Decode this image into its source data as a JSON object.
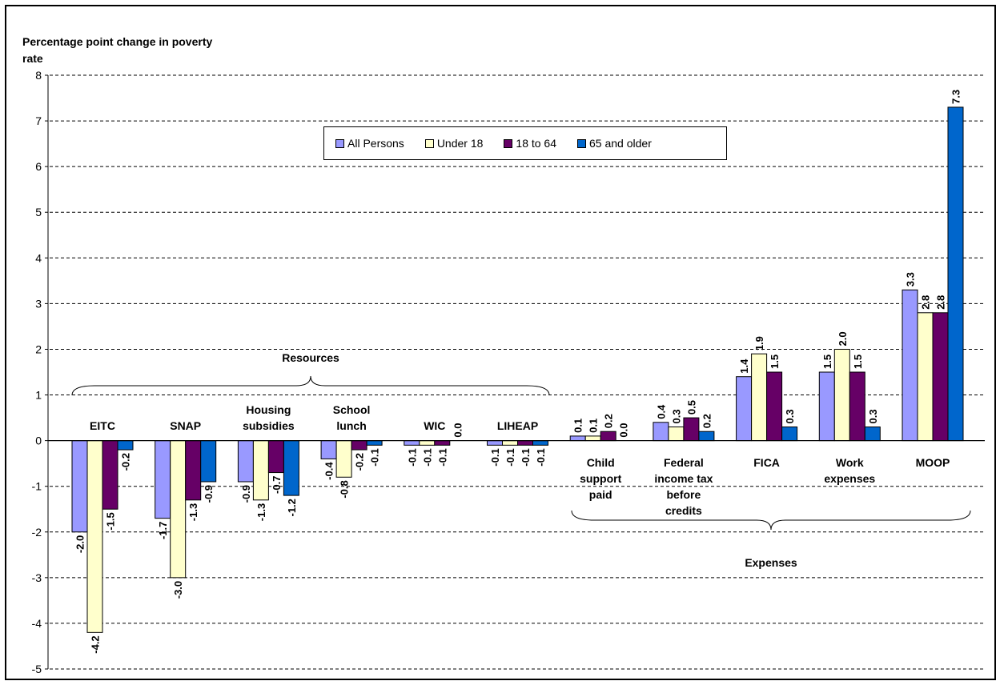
{
  "chart_data": {
    "type": "bar",
    "ylabel": "Percentage point change in poverty rate",
    "ylim": [
      -5,
      8
    ],
    "yticks": [
      "8",
      "7",
      "6",
      "5",
      "4",
      "3",
      "2",
      "1",
      "0",
      "-1",
      "-2",
      "-3",
      "-4",
      "-5"
    ],
    "grid": true,
    "legend_placement": "top-center",
    "categories": [
      "EITC",
      "SNAP",
      "Housing subsidies",
      "School lunch",
      "WIC",
      "LIHEAP",
      "Child support paid",
      "Federal income tax before credits",
      "FICA",
      "Work expenses",
      "MOOP"
    ],
    "category_labels": [
      [
        "EITC"
      ],
      [
        "SNAP"
      ],
      [
        "Housing",
        "subsidies"
      ],
      [
        "School",
        "lunch"
      ],
      [
        "WIC"
      ],
      [
        "LIHEAP"
      ],
      [
        "Child",
        "support",
        "paid"
      ],
      [
        "Federal",
        "income tax",
        "before",
        "credits"
      ],
      [
        "FICA"
      ],
      [
        "Work",
        "expenses"
      ],
      [
        "MOOP"
      ]
    ],
    "series": [
      {
        "name": "All Persons",
        "color": "#9999ff",
        "values": [
          -2.0,
          -1.7,
          -0.9,
          -0.4,
          -0.1,
          -0.1,
          0.1,
          0.4,
          1.4,
          1.5,
          3.3
        ]
      },
      {
        "name": "Under 18",
        "color": "#ffffcc",
        "values": [
          -4.2,
          -3.0,
          -1.3,
          -0.8,
          -0.1,
          -0.1,
          0.1,
          0.3,
          1.9,
          2.0,
          2.8
        ]
      },
      {
        "name": "18 to 64",
        "color": "#660066",
        "values": [
          -1.5,
          -1.3,
          -0.7,
          -0.2,
          -0.1,
          -0.1,
          0.2,
          0.5,
          1.5,
          1.5,
          2.8
        ]
      },
      {
        "name": "65 and older",
        "color": "#0066cc",
        "values": [
          -0.2,
          -0.9,
          -1.2,
          -0.1,
          0.0,
          -0.1,
          0.0,
          0.2,
          0.3,
          0.3,
          7.3
        ]
      }
    ],
    "data_labels": [
      [
        "-2.0",
        "-4.2",
        "-1.5",
        "-0.2"
      ],
      [
        "-1.7",
        "-3.0",
        "-1.3",
        "-0.9"
      ],
      [
        "-0.9",
        "-1.3",
        "-0.7",
        "-1.2"
      ],
      [
        "-0.4",
        "-0.8",
        "-0.2",
        "-0.1"
      ],
      [
        "-0.1",
        "-0.1",
        "-0.1",
        "0.0"
      ],
      [
        "-0.1",
        "-0.1",
        "-0.1",
        "-0.1"
      ],
      [
        "0.1",
        "0.1",
        "0.2",
        "0.0"
      ],
      [
        "0.4",
        "0.3",
        "0.5",
        "0.2"
      ],
      [
        "1.4",
        "1.9",
        "1.5",
        "0.3"
      ],
      [
        "1.5",
        "2.0",
        "1.5",
        "0.3"
      ],
      [
        "3.3",
        "2.8",
        "2.8",
        "7.3"
      ]
    ],
    "groups": [
      {
        "label": "Resources",
        "categories": [
          "EITC",
          "SNAP",
          "Housing subsidies",
          "School lunch",
          "WIC",
          "LIHEAP"
        ]
      },
      {
        "label": "Expenses",
        "categories": [
          "Child support paid",
          "Federal income tax before credits",
          "FICA",
          "Work expenses",
          "MOOP"
        ]
      }
    ]
  },
  "legend": {
    "items": [
      {
        "label": "All Persons",
        "color": "#9999ff"
      },
      {
        "label": "Under 18",
        "color": "#ffffcc"
      },
      {
        "label": "18 to 64",
        "color": "#660066"
      },
      {
        "label": "65 and older",
        "color": "#0066cc"
      }
    ]
  }
}
